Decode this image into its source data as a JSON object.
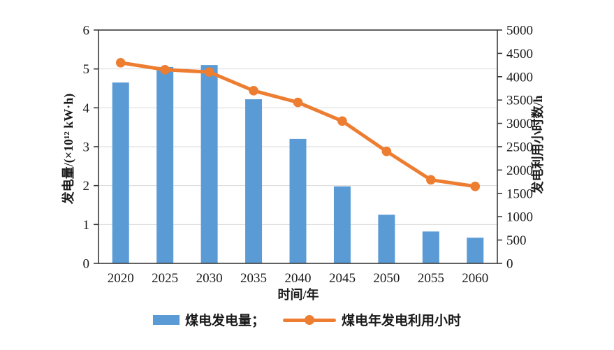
{
  "chart_data": {
    "type": "bar",
    "subtype": "bar+line combo, dual y-axis",
    "categories": [
      "2020",
      "2025",
      "2030",
      "2035",
      "2040",
      "2045",
      "2050",
      "2055",
      "2060"
    ],
    "series": [
      {
        "name": "煤电发电量",
        "kind": "bar",
        "axis": "left",
        "color": "#5B9BD5",
        "values": [
          4.65,
          5.05,
          5.1,
          4.22,
          3.2,
          1.98,
          1.25,
          0.82,
          0.66
        ]
      },
      {
        "name": "煤电年发电利用小时",
        "kind": "line",
        "axis": "right",
        "color": "#ED7D31",
        "marker": "circle",
        "values": [
          4300,
          4150,
          4100,
          3700,
          3450,
          3050,
          2400,
          1790,
          1650
        ]
      }
    ],
    "left_axis": {
      "label": "发电量/(×10¹² kW·h)",
      "min": 0,
      "max": 6,
      "step": 1,
      "ticks": [
        "0",
        "1",
        "2",
        "3",
        "4",
        "5",
        "6"
      ]
    },
    "right_axis": {
      "label": "发电利用小时数/h",
      "min": 0,
      "max": 5000,
      "step": 500,
      "ticks": [
        "0",
        "500",
        "1000",
        "1500",
        "2000",
        "2500",
        "3000",
        "3500",
        "4000",
        "4500",
        "5000"
      ]
    },
    "x_axis": {
      "label": "时间/年"
    },
    "legend": {
      "position": "bottom-center",
      "items": [
        {
          "label": "煤电发电量；",
          "swatch": "bar",
          "color": "#5B9BD5"
        },
        {
          "label": "煤电年发电利用小时",
          "swatch": "line",
          "color": "#ED7D31"
        }
      ]
    },
    "grid": {
      "horizontal": true,
      "at_left_values": [
        1,
        2,
        3,
        4,
        5
      ],
      "color": "#d9d9d9"
    },
    "frame": {
      "border_box": true,
      "axis_color": "#3a3a3a"
    },
    "text_color": "#1a1a1a",
    "background": "#ffffff"
  }
}
